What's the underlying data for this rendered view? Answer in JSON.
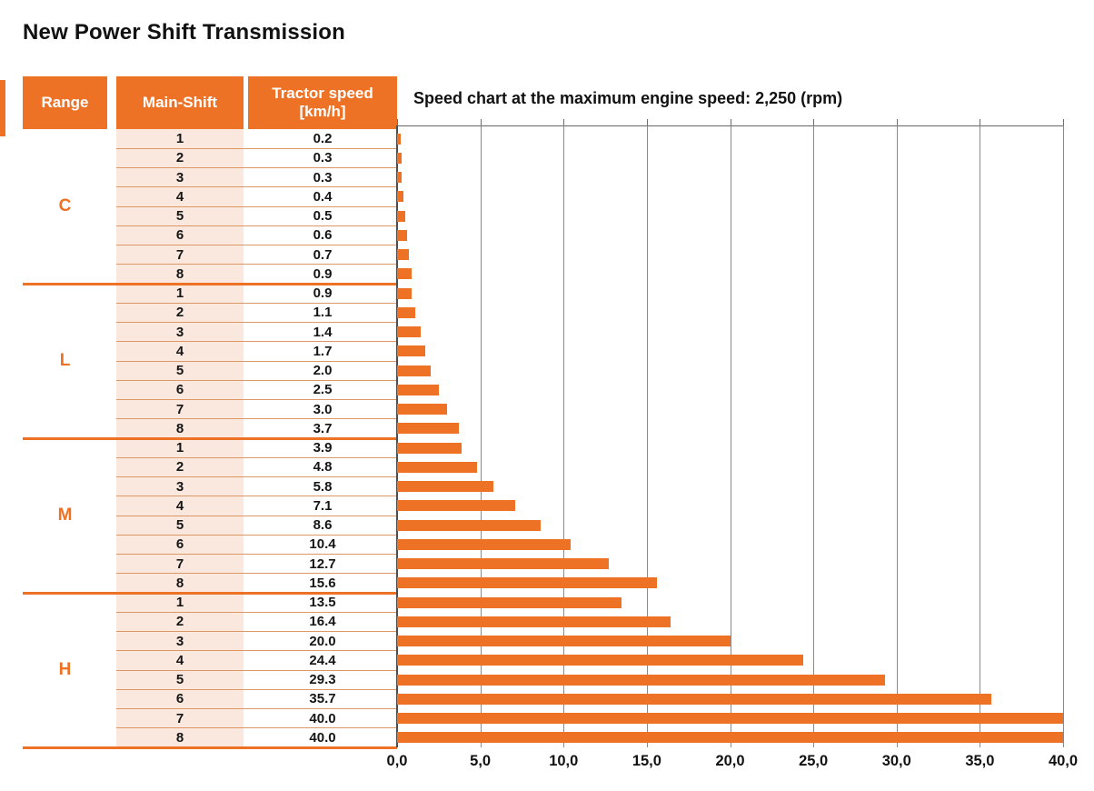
{
  "page": {
    "title": "New Power Shift Transmission"
  },
  "table": {
    "headers": {
      "range": "Range",
      "main_shift": "Main-Shift",
      "tractor_speed": "Tractor speed [km/h]"
    },
    "gears": [
      "1",
      "2",
      "3",
      "4",
      "5",
      "6",
      "7",
      "8"
    ],
    "ranges": [
      {
        "label": "C",
        "speeds": [
          "0.2",
          "0.3",
          "0.3",
          "0.4",
          "0.5",
          "0.6",
          "0.7",
          "0.9"
        ]
      },
      {
        "label": "L",
        "speeds": [
          "0.9",
          "1.1",
          "1.4",
          "1.7",
          "2.0",
          "2.5",
          "3.0",
          "3.7"
        ]
      },
      {
        "label": "M",
        "speeds": [
          "3.9",
          "4.8",
          "5.8",
          "7.1",
          "8.6",
          "10.4",
          "12.7",
          "15.6"
        ]
      },
      {
        "label": "H",
        "speeds": [
          "13.5",
          "16.4",
          "20.0",
          "24.4",
          "29.3",
          "35.7",
          "40.0",
          "40.0"
        ]
      }
    ]
  },
  "chart_data": {
    "type": "bar",
    "orientation": "horizontal",
    "title": "Speed chart at the maximum engine speed: 2,250 (rpm)",
    "categories": [
      "C1",
      "C2",
      "C3",
      "C4",
      "C5",
      "C6",
      "C7",
      "C8",
      "L1",
      "L2",
      "L3",
      "L4",
      "L5",
      "L6",
      "L7",
      "L8",
      "M1",
      "M2",
      "M3",
      "M4",
      "M5",
      "M6",
      "M7",
      "M8",
      "H1",
      "H2",
      "H3",
      "H4",
      "H5",
      "H6",
      "H7",
      "H8"
    ],
    "values": [
      0.2,
      0.3,
      0.3,
      0.4,
      0.5,
      0.6,
      0.7,
      0.9,
      0.9,
      1.1,
      1.4,
      1.7,
      2.0,
      2.5,
      3.0,
      3.7,
      3.9,
      4.8,
      5.8,
      7.1,
      8.6,
      10.4,
      12.7,
      15.6,
      13.5,
      16.4,
      20.0,
      24.4,
      29.3,
      35.7,
      40.0,
      40.0
    ],
    "xlabel": "Tractor speed [km/h]",
    "xlim": [
      0,
      40
    ],
    "x_tick_interval": 5,
    "x_tick_labels": [
      "0,0",
      "5,0",
      "10,0",
      "15,0",
      "20,0",
      "25,0",
      "30,0",
      "35,0",
      "40,0"
    ],
    "grid": true,
    "legend": "none"
  },
  "colors": {
    "bar_orange": "#ED7226",
    "header_orange": "#ED7226",
    "row_tint_pink": "#FAE8DF",
    "thin_divider": "#DC9765",
    "gridline_gray": "#8A8A8A"
  }
}
